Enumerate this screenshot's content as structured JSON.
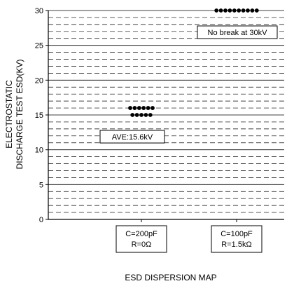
{
  "chart_data": {
    "type": "scatter",
    "title": "",
    "xlabel": "ESD DISPERSION MAP",
    "ylabel_lines": [
      "ELECTROSTATIC",
      "DISCHARGE TEST ESD(KV)"
    ],
    "ylim": [
      0,
      30
    ],
    "yticks": [
      "0",
      "5",
      "10",
      "15",
      "20",
      "25",
      "30"
    ],
    "grid": true,
    "categories": [
      {
        "lines": [
          "C=200pF",
          "R=0Ω"
        ]
      },
      {
        "lines": [
          "C=100pF",
          "R=1.5kΩ"
        ]
      }
    ],
    "series": [
      {
        "category": 0,
        "rows": [
          {
            "y": 16,
            "count": 6
          },
          {
            "y": 15,
            "count": 5
          }
        ]
      },
      {
        "category": 1,
        "rows": [
          {
            "y": 30,
            "count": 10
          }
        ]
      }
    ],
    "annotations": [
      {
        "text": "AVE:15.6kV",
        "category": 0
      },
      {
        "text": "No break at 30kV",
        "category": 1
      }
    ],
    "point_color": "#000000"
  }
}
